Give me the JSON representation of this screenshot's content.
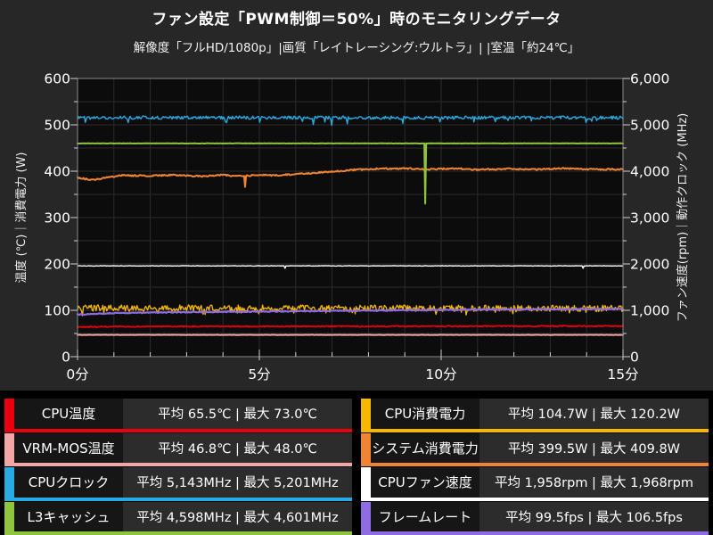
{
  "header": {
    "title": "ファン設定「PWM制御＝50%」時のモニタリングデータ",
    "subtitle": "解像度「フルHD/1080p」|画質「レイトレーシング:ウルトラ」| |室温「約24℃」"
  },
  "chart_data": {
    "type": "line",
    "title": "ファン設定「PWM制御＝50%」時のモニタリングデータ",
    "subtitle": "解像度「フルHD/1080p」|画質「レイトレーシング:ウルトラ」| |室温「約24℃」",
    "grid": "on",
    "background": {
      "panel": "#272727",
      "plot": "#0c0c0c",
      "gridline": "#2b2b2b",
      "tick": "#cfcfcf",
      "border": "#8a8a8a"
    },
    "x_axis": {
      "labels": [
        "0分",
        "5分",
        "10分",
        "15分"
      ],
      "tick_times": [
        0,
        5,
        10,
        15
      ],
      "min": 0,
      "max": 15,
      "minor_step": 1
    },
    "y_left": {
      "title": "温度 (℃)｜消費電力 (W)",
      "labels": [
        "600",
        "500",
        "400",
        "300",
        "200",
        "100",
        "0"
      ],
      "min": 0,
      "max": 600,
      "major_step": 100,
      "minor_step": 50
    },
    "y_right": {
      "title": "ファン速度(rpm)｜動作クロック (MHz)",
      "labels": [
        "6,000",
        "5,000",
        "4,000",
        "3,000",
        "2,000",
        "1,000",
        "0"
      ],
      "min": 0,
      "max": 6000,
      "major_step": 1000,
      "minor_step": 500
    },
    "series": [
      {
        "name": "VRM-MOS温度",
        "unit": "℃",
        "axis": "left",
        "color": "#f2a6a6",
        "width": 2,
        "avg": 46.8,
        "max": 48.0,
        "scale": 1,
        "noise": 0.25,
        "keypoints": [
          [
            0,
            47
          ],
          [
            15,
            47
          ]
        ]
      },
      {
        "name": "CPU温度",
        "unit": "℃",
        "axis": "left",
        "color": "#e8000d",
        "width": 1.8,
        "avg": 65.5,
        "max": 73.0,
        "scale": 1,
        "noise": 1.2,
        "keypoints": [
          [
            0,
            64
          ],
          [
            2,
            65
          ],
          [
            15,
            66
          ]
        ]
      },
      {
        "name": "CPU消費電力",
        "unit": "W",
        "axis": "left",
        "color": "#f6b900",
        "width": 1.3,
        "avg": 104.7,
        "max": 120.2,
        "scale": 1,
        "noise": 7,
        "dip_prob": 0.12,
        "dip_depth": 10,
        "keypoints": [
          [
            0,
            105
          ],
          [
            15,
            104
          ]
        ]
      },
      {
        "name": "フレームレート",
        "unit": "fps",
        "axis": "left",
        "color": "#8f6be4",
        "width": 2.2,
        "avg": 99.5,
        "max": 106.5,
        "scale": 1,
        "noise": 1,
        "keypoints": [
          [
            0,
            91
          ],
          [
            1,
            94
          ],
          [
            3,
            96
          ],
          [
            6,
            98
          ],
          [
            9,
            100
          ],
          [
            12,
            102
          ],
          [
            15,
            103
          ]
        ]
      },
      {
        "name": "CPUファン速度",
        "unit": "rpm",
        "axis": "right",
        "color": "#ffffff",
        "width": 1.4,
        "avg": 1958,
        "max": 1968,
        "scale": 10,
        "noise": 5,
        "spikes": [
          {
            "t": 5.7,
            "v": 1905
          },
          {
            "t": 13.9,
            "v": 1905
          }
        ],
        "keypoints": [
          [
            0,
            1958
          ],
          [
            15,
            1958
          ]
        ]
      },
      {
        "name": "システム消費電力",
        "unit": "W",
        "axis": "left",
        "color": "#ef8432",
        "width": 2,
        "avg": 399.5,
        "max": 409.8,
        "scale": 1,
        "noise": 1.5,
        "spikes": [
          {
            "t": 4.62,
            "v": 366
          }
        ],
        "keypoints": [
          [
            0,
            386
          ],
          [
            0.4,
            381
          ],
          [
            1.2,
            391
          ],
          [
            2,
            390
          ],
          [
            2.6,
            392
          ],
          [
            3.4,
            389
          ],
          [
            4,
            392
          ],
          [
            4.4,
            389
          ],
          [
            5,
            392
          ],
          [
            5.5,
            391
          ],
          [
            6,
            394
          ],
          [
            6.5,
            396
          ],
          [
            7,
            399
          ],
          [
            7.6,
            403
          ],
          [
            8.2,
            405
          ],
          [
            9,
            406
          ],
          [
            9.6,
            404
          ],
          [
            10.4,
            406
          ],
          [
            11,
            403
          ],
          [
            11.8,
            405
          ],
          [
            12.6,
            404
          ],
          [
            13.4,
            406
          ],
          [
            14.2,
            404
          ],
          [
            15,
            404
          ]
        ]
      },
      {
        "name": "L3キャッシュ",
        "unit": "MHz",
        "axis": "right",
        "color": "#8fc43e",
        "width": 2,
        "avg": 4598,
        "max": 4601,
        "scale": 10,
        "noise": 4,
        "spikes": [
          {
            "t": 9.56,
            "v": 3300
          }
        ],
        "keypoints": [
          [
            0,
            4600
          ],
          [
            15,
            4600
          ]
        ]
      },
      {
        "name": "CPUクロック",
        "unit": "MHz",
        "axis": "right",
        "color": "#29abe2",
        "width": 1.4,
        "avg": 5143,
        "max": 5201,
        "scale": 10,
        "noise": 35,
        "dip_prob": 0.05,
        "dip_depth": 150,
        "keypoints": [
          [
            0,
            5155
          ],
          [
            15,
            5155
          ]
        ]
      }
    ]
  },
  "legend": {
    "avg_prefix": "平均",
    "max_prefix": "最大",
    "rows": [
      {
        "label": "CPU温度",
        "value": "平均 65.5℃ | 最大 73.0℃",
        "color": "#e8000d"
      },
      {
        "label": "CPU消費電力",
        "value": "平均 104.7W | 最大 120.2W",
        "color": "#f6b900"
      },
      {
        "label": "VRM-MOS温度",
        "value": "平均 46.8℃ | 最大 48.0℃",
        "color": "#f2a6a6"
      },
      {
        "label": "システム消費電力",
        "value": "平均 399.5W | 最大 409.8W",
        "color": "#ef8432"
      },
      {
        "label": "CPUクロック",
        "value": "平均 5,143MHz | 最大 5,201MHz",
        "color": "#29abe2"
      },
      {
        "label": "CPUファン速度",
        "value": "平均 1,958rpm | 最大 1,968rpm",
        "color": "#ffffff"
      },
      {
        "label": "L3キャッシュ",
        "value": "平均 4,598MHz | 最大 4,601MHz",
        "color": "#8fc43e"
      },
      {
        "label": "フレームレート",
        "value": "平均 99.5fps | 最大 106.5fps",
        "color": "#8f6be4"
      }
    ]
  }
}
